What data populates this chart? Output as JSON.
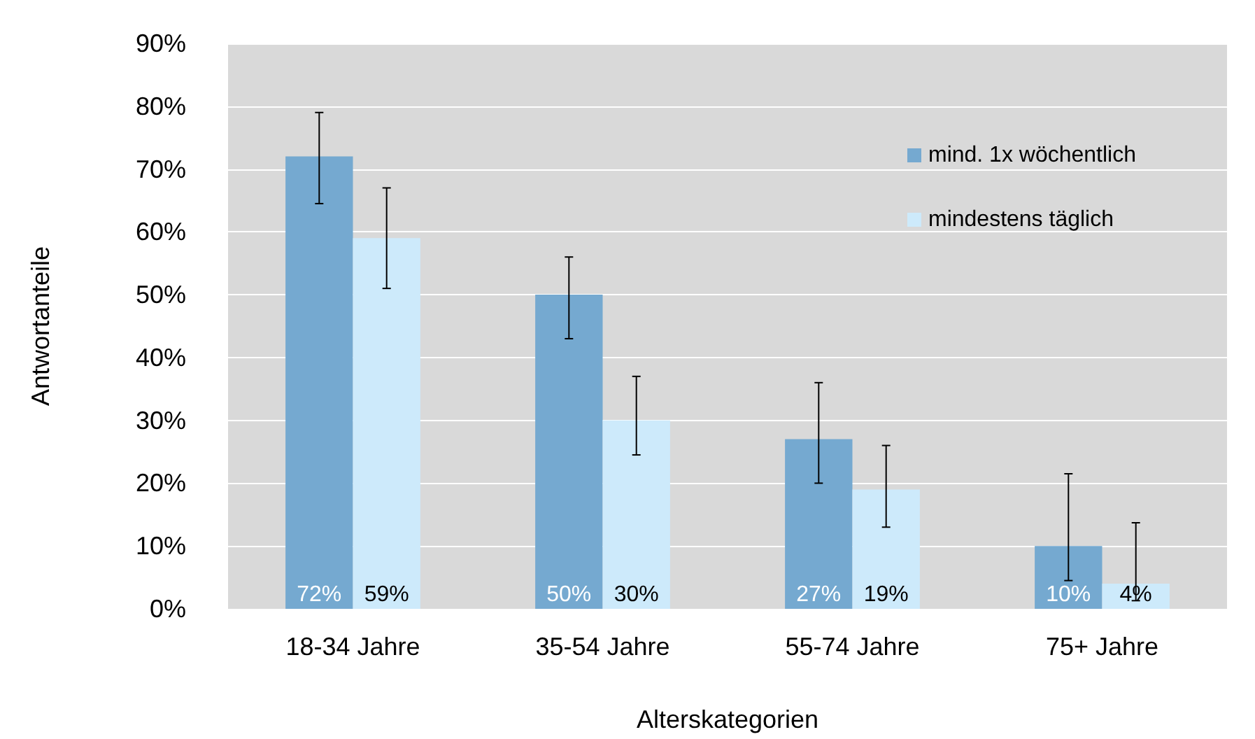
{
  "chart_data": {
    "type": "bar",
    "xlabel": "Alterskategorien",
    "ylabel": "Antwortanteile",
    "categories": [
      "18-34 Jahre",
      "35-54 Jahre",
      "55-74 Jahre",
      "75+ Jahre"
    ],
    "series": [
      {
        "name": "mind. 1x wöchentlich",
        "color": "#75a9d0",
        "values": [
          72,
          50,
          27,
          10
        ],
        "value_labels": [
          "72%",
          "50%",
          "27%",
          "10%"
        ],
        "errors": [
          [
            64.5,
            79
          ],
          [
            43,
            56
          ],
          [
            20,
            36
          ],
          [
            4.5,
            21.5
          ]
        ]
      },
      {
        "name": "mindestens täglich",
        "color": "#cdeafb",
        "values": [
          59,
          30,
          19,
          4
        ],
        "value_labels": [
          "59%",
          "30%",
          "19%",
          "4%"
        ],
        "errors": [
          [
            51,
            67
          ],
          [
            24.5,
            37
          ],
          [
            13,
            26
          ],
          [
            1.3,
            13.7
          ]
        ]
      }
    ],
    "ylim": [
      0,
      90
    ],
    "yticks": [
      {
        "value": 0,
        "label": "0%"
      },
      {
        "value": 10,
        "label": "10%"
      },
      {
        "value": 20,
        "label": "20%"
      },
      {
        "value": 30,
        "label": "30%"
      },
      {
        "value": 40,
        "label": "40%"
      },
      {
        "value": 50,
        "label": "50%"
      },
      {
        "value": 60,
        "label": "60%"
      },
      {
        "value": 70,
        "label": "70%"
      },
      {
        "value": 80,
        "label": "80%"
      },
      {
        "value": 90,
        "label": "90%"
      }
    ],
    "grid": "y",
    "legend": "top right"
  }
}
